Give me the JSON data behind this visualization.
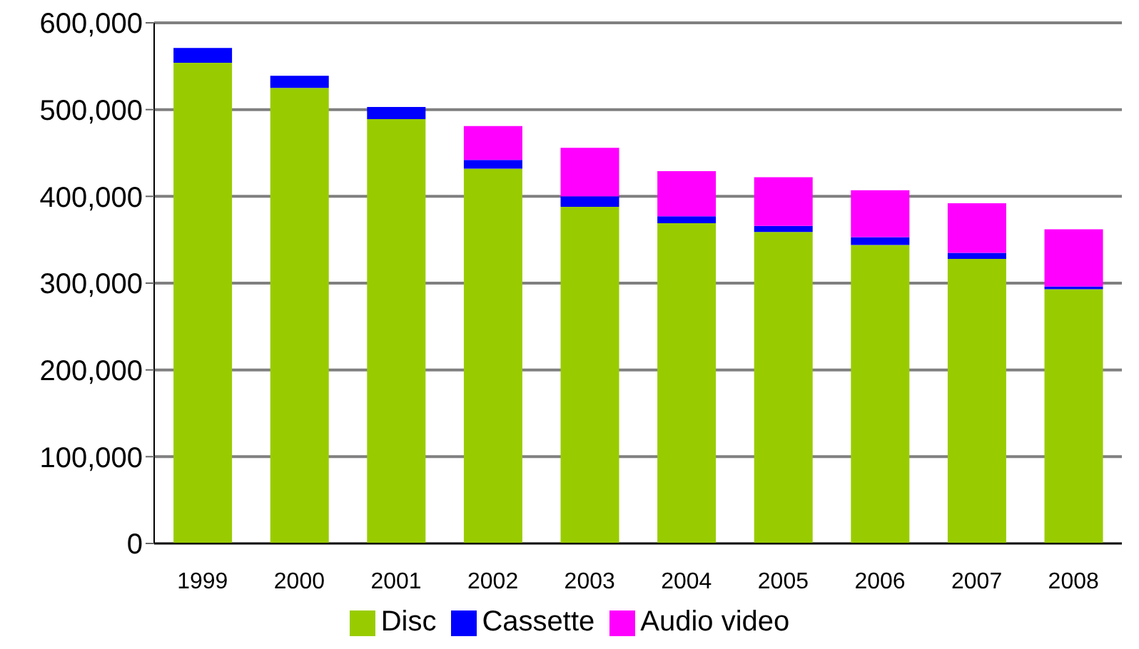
{
  "chart_data": {
    "type": "bar",
    "stacked": true,
    "categories": [
      "1999",
      "2000",
      "2001",
      "2002",
      "2003",
      "2004",
      "2005",
      "2006",
      "2007",
      "2008"
    ],
    "series": [
      {
        "name": "Disc",
        "color": "#99cc00",
        "values": [
          554000,
          525000,
          489000,
          432000,
          388000,
          369000,
          359000,
          344000,
          328000,
          293000
        ]
      },
      {
        "name": "Cassette",
        "color": "#0000ff",
        "values": [
          17000,
          14000,
          14000,
          10000,
          12000,
          8000,
          7000,
          9000,
          7000,
          3000
        ]
      },
      {
        "name": "Audio video",
        "color": "#ff00ff",
        "values": [
          0,
          0,
          0,
          39000,
          56000,
          52000,
          56000,
          54000,
          57000,
          66000
        ]
      }
    ],
    "ylim": [
      0,
      600000
    ],
    "yticks": [
      0,
      {
        "value": 100000,
        "label": "100,000"
      },
      {
        "value": 200000,
        "label": "200,000"
      },
      {
        "value": 300000,
        "label": "300,000"
      },
      {
        "value": 400000,
        "label": "400,000"
      },
      {
        "value": 500000,
        "label": "500,000"
      },
      {
        "value": 600000,
        "label": "600,000"
      }
    ],
    "grid": "y",
    "legend": "bottom"
  }
}
